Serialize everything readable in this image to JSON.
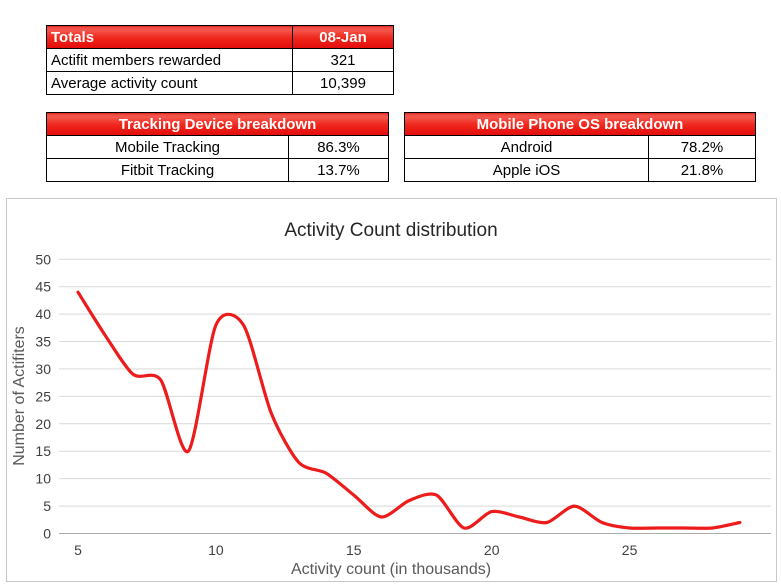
{
  "tables": {
    "totals": {
      "header": [
        "Totals",
        "08-Jan"
      ],
      "rows": [
        [
          "Actifit members rewarded",
          "321"
        ],
        [
          "Average activity count",
          "10,399"
        ]
      ]
    },
    "tracking": {
      "header": "Tracking Device breakdown",
      "rows": [
        [
          "Mobile Tracking",
          "86.3%"
        ],
        [
          "Fitbit Tracking",
          "13.7%"
        ]
      ]
    },
    "os": {
      "header": "Mobile Phone OS breakdown",
      "rows": [
        [
          "Android",
          "78.2%"
        ],
        [
          "Apple iOS",
          "21.8%"
        ]
      ]
    }
  },
  "chart_data": {
    "type": "line",
    "title": "Activity Count distribution",
    "xlabel": "Activity count (in thousands)",
    "ylabel": "Number of Actifiters",
    "x": [
      5,
      6,
      7,
      8,
      9,
      10,
      11,
      12,
      13,
      14,
      15,
      16,
      17,
      18,
      19,
      20,
      21,
      22,
      23,
      24,
      25,
      26,
      27,
      28,
      29
    ],
    "y": [
      44,
      36,
      29,
      28,
      15,
      38,
      38,
      22,
      13,
      11,
      7,
      3,
      6,
      7,
      1,
      4,
      3,
      2,
      5,
      2,
      1,
      1,
      1,
      1,
      2
    ],
    "xticks": [
      5,
      10,
      15,
      20,
      25
    ],
    "yticks": [
      0,
      5,
      10,
      15,
      20,
      25,
      30,
      35,
      40,
      45,
      50
    ],
    "ylim": [
      0,
      50
    ],
    "xlim": [
      4.4,
      30.3
    ],
    "grid": "horizontal",
    "legend": "none",
    "smooth": true,
    "line_color": "#ed1c1c"
  },
  "colors": {
    "header_red_top": "#f4574d",
    "header_red_bottom": "#e30d0d",
    "grid_line": "#d9d9d9",
    "axis_line": "#ababab",
    "chart_border": "#c8c8c8",
    "tick_text": "#404040",
    "axis_title_text": "#595959",
    "title_text": "#262626"
  }
}
